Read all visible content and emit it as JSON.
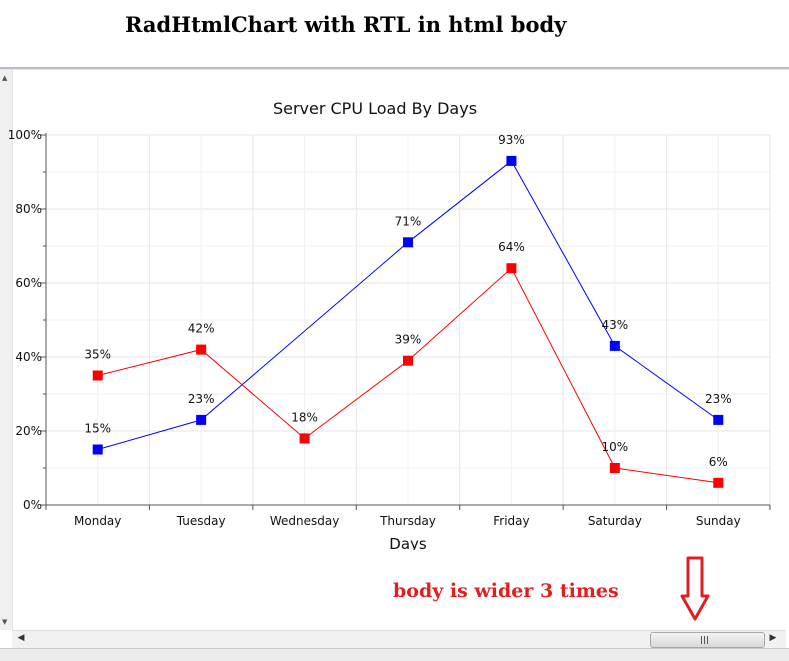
{
  "page": {
    "heading": "RadHtmlChart with RTL in html body",
    "note": "body is wider 3 times"
  },
  "colors": {
    "series_blue": "#0000ff",
    "series_red": "#ff0000",
    "note_red": "#e02020",
    "grid": "#e8e8e8",
    "axis": "#555555"
  },
  "icons": {
    "down_arrow": "down-arrow-icon",
    "scroll_left": "scroll-left-arrow-icon",
    "scroll_right": "scroll-right-arrow-icon"
  },
  "chart_data": {
    "type": "line",
    "title": "Server CPU Load By Days",
    "xlabel": "Days",
    "ylabel": "",
    "categories": [
      "Monday",
      "Tuesday",
      "Wednesday",
      "Thursday",
      "Friday",
      "Saturday",
      "Sunday"
    ],
    "ylim": [
      0,
      100
    ],
    "yticks": [
      "0%",
      "20%",
      "40%",
      "60%",
      "80%",
      "100%"
    ],
    "grid": true,
    "legend": "none",
    "series": [
      {
        "color": "#0000ff",
        "values": [
          15,
          23,
          null,
          71,
          93,
          43,
          23
        ],
        "labels": [
          "15%",
          "23%",
          "",
          "71%",
          "93%",
          "43%",
          "23%"
        ]
      },
      {
        "color": "#ff0000",
        "values": [
          35,
          42,
          18,
          39,
          64,
          10,
          6
        ],
        "labels": [
          "35%",
          "42%",
          "18%",
          "39%",
          "64%",
          "10%",
          "6%"
        ]
      }
    ]
  }
}
